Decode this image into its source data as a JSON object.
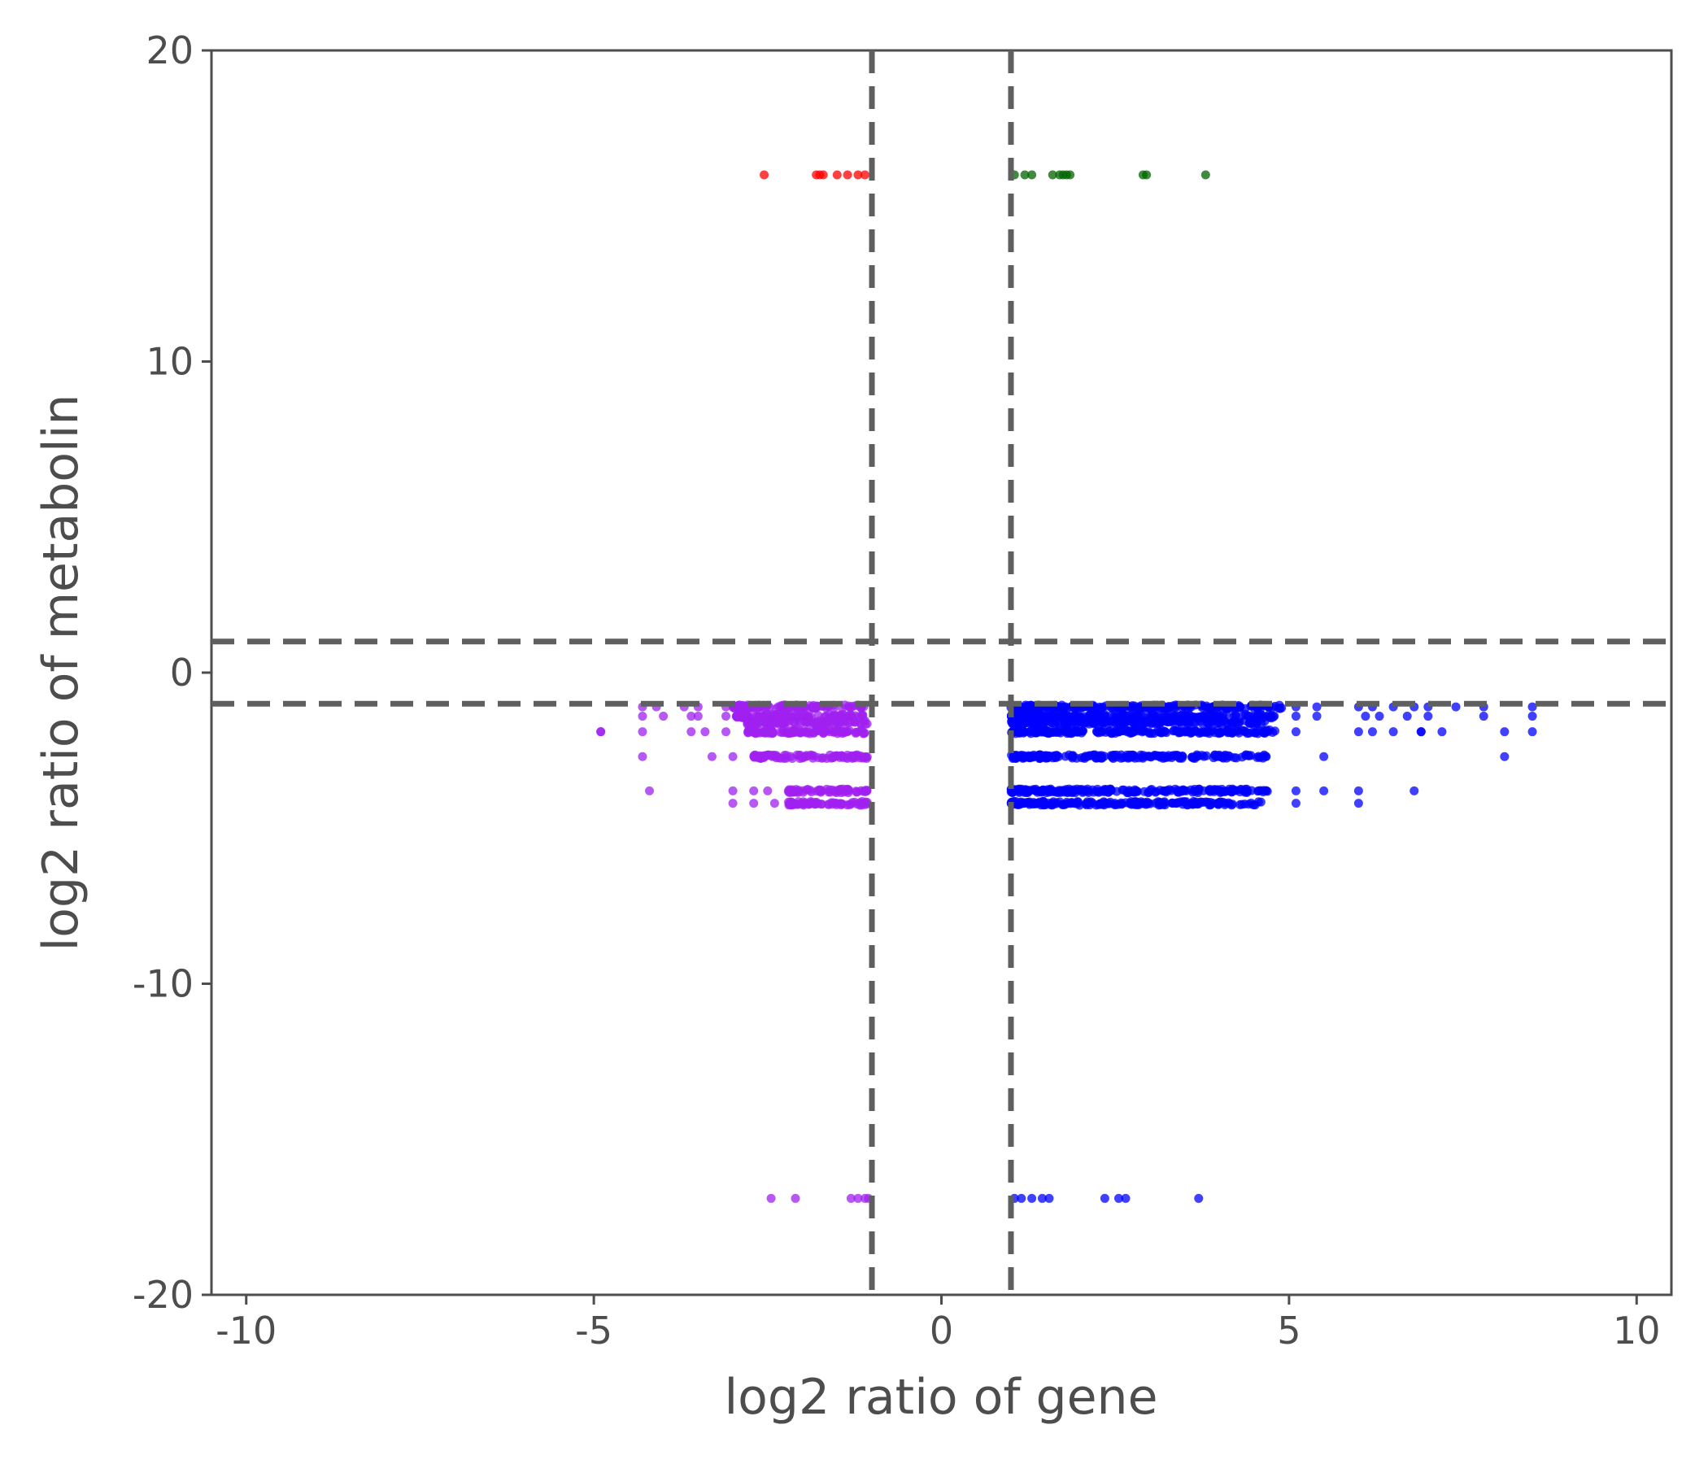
{
  "chart_data": {
    "type": "scatter",
    "title": "",
    "xlabel": "log2 ratio of gene",
    "ylabel": "log2 ratio of metabolin",
    "xlim": [
      -10.5,
      10.5
    ],
    "ylim": [
      -20,
      20
    ],
    "xticks": [
      -10,
      -5,
      0,
      5,
      10
    ],
    "xtick_labels": [
      "-10",
      "-5",
      "0",
      "5",
      "10"
    ],
    "yticks": [
      20,
      10,
      0,
      -10,
      -20
    ],
    "ytick_labels": [
      "20",
      "10",
      "0",
      "-10",
      "-20"
    ],
    "grid": false,
    "legend": "none",
    "threshold_lines": {
      "x": [
        -1,
        1
      ],
      "y": [
        1,
        -1
      ],
      "color": "#5f5f5f",
      "style": "dashed"
    },
    "series": [
      {
        "color": "#ff0000",
        "points": [
          [
            -2.55,
            16
          ],
          [
            -1.8,
            16
          ],
          [
            -1.75,
            16
          ],
          [
            -1.7,
            16
          ],
          [
            -1.5,
            16
          ],
          [
            -1.35,
            16
          ],
          [
            -1.2,
            16
          ],
          [
            -1.1,
            16
          ]
        ]
      },
      {
        "color": "#006400",
        "points": [
          [
            1.05,
            16
          ],
          [
            1.2,
            16
          ],
          [
            1.3,
            16
          ],
          [
            1.6,
            16
          ],
          [
            1.7,
            16
          ],
          [
            1.75,
            16
          ],
          [
            1.8,
            16
          ],
          [
            1.85,
            16
          ],
          [
            2.9,
            16
          ],
          [
            2.95,
            16
          ],
          [
            3.8,
            16
          ]
        ]
      },
      {
        "color": "#a020f0",
        "points": [
          [
            -4.9,
            -1.9
          ],
          [
            -4.3,
            -1.1
          ],
          [
            -4.3,
            -1.4
          ],
          [
            -4.3,
            -1.9
          ],
          [
            -4.3,
            -2.7
          ],
          [
            -4.2,
            -3.8
          ],
          [
            -4.1,
            -1.1
          ],
          [
            -4.0,
            -1.4
          ],
          [
            -3.7,
            -1.1
          ],
          [
            -3.6,
            -1.4
          ],
          [
            -3.6,
            -1.9
          ],
          [
            -3.5,
            -1.1
          ],
          [
            -3.5,
            -1.4
          ],
          [
            -3.4,
            -1.9
          ],
          [
            -3.3,
            -2.7
          ],
          [
            -3.1,
            -1.1
          ],
          [
            -3.1,
            -1.4
          ],
          [
            -3.1,
            -1.9
          ],
          [
            -3.0,
            -2.7
          ],
          [
            -3.0,
            -3.8
          ],
          [
            -3.0,
            -4.2
          ],
          [
            -2.9,
            -1.1
          ],
          [
            -2.7,
            -3.8
          ],
          [
            -2.7,
            -4.2
          ],
          [
            -2.6,
            -2.7
          ],
          [
            -2.5,
            -3.8
          ],
          [
            -2.4,
            -4.2
          ],
          [
            -2.2,
            -3.8
          ],
          [
            -2.0,
            -4.2
          ],
          [
            -4.9,
            -1.9
          ],
          [
            -2.45,
            -16.9
          ],
          [
            -2.1,
            -16.9
          ],
          [
            -1.3,
            -16.9
          ],
          [
            -1.2,
            -16.9
          ],
          [
            -1.1,
            -16.9
          ],
          [
            -1.05,
            -16.9
          ]
        ],
        "bands": [
          {
            "y": -1.1,
            "x_from": -3.0,
            "x_to": -1.05
          },
          {
            "y": -1.4,
            "x_from": -2.95,
            "x_to": -1.05
          },
          {
            "y": -1.6,
            "x_from": -2.8,
            "x_to": -1.05
          },
          {
            "y": -1.9,
            "x_from": -2.8,
            "x_to": -1.05
          },
          {
            "y": -2.7,
            "x_from": -2.7,
            "x_to": -1.05
          },
          {
            "y": -3.8,
            "x_from": -2.2,
            "x_to": -1.05
          },
          {
            "y": -4.2,
            "x_from": -2.2,
            "x_to": -1.05
          }
        ]
      },
      {
        "color": "#0000ff",
        "points": [
          [
            5.1,
            -1.1
          ],
          [
            5.1,
            -1.4
          ],
          [
            5.4,
            -1.1
          ],
          [
            5.4,
            -1.4
          ],
          [
            5.1,
            -1.9
          ],
          [
            5.5,
            -2.7
          ],
          [
            5.1,
            -3.8
          ],
          [
            5.1,
            -4.2
          ],
          [
            5.5,
            -3.8
          ],
          [
            6.0,
            -1.1
          ],
          [
            6.1,
            -1.4
          ],
          [
            6.2,
            -1.1
          ],
          [
            6.3,
            -1.4
          ],
          [
            6.0,
            -1.9
          ],
          [
            6.2,
            -1.9
          ],
          [
            6.5,
            -1.9
          ],
          [
            6.5,
            -1.1
          ],
          [
            6.7,
            -1.4
          ],
          [
            6.8,
            -1.1
          ],
          [
            6.9,
            -1.9
          ],
          [
            7.0,
            -1.1
          ],
          [
            7.0,
            -1.4
          ],
          [
            7.2,
            -1.9
          ],
          [
            7.4,
            -1.1
          ],
          [
            7.8,
            -1.1
          ],
          [
            7.8,
            -1.4
          ],
          [
            8.1,
            -1.9
          ],
          [
            8.1,
            -2.7
          ],
          [
            8.5,
            -1.1
          ],
          [
            8.5,
            -1.4
          ],
          [
            8.5,
            -1.9
          ],
          [
            6.0,
            -3.8
          ],
          [
            6.0,
            -4.2
          ],
          [
            6.8,
            -3.8
          ],
          [
            6.9,
            -1.9
          ],
          [
            1.05,
            -16.9
          ],
          [
            1.15,
            -16.9
          ],
          [
            1.3,
            -16.9
          ],
          [
            1.45,
            -16.9
          ],
          [
            1.55,
            -16.9
          ],
          [
            2.35,
            -16.9
          ],
          [
            2.55,
            -16.9
          ],
          [
            2.65,
            -16.9
          ],
          [
            3.7,
            -16.9
          ]
        ],
        "bands": [
          {
            "y": -1.1,
            "x_from": 1.0,
            "x_to": 4.9
          },
          {
            "y": -1.4,
            "x_from": 1.0,
            "x_to": 4.8
          },
          {
            "y": -1.6,
            "x_from": 1.0,
            "x_to": 4.7
          },
          {
            "y": -1.9,
            "x_from": 1.0,
            "x_to": 4.8
          },
          {
            "y": -2.7,
            "x_from": 1.0,
            "x_to": 4.7
          },
          {
            "y": -3.8,
            "x_from": 1.0,
            "x_to": 4.7
          },
          {
            "y": -4.2,
            "x_from": 1.0,
            "x_to": 4.6
          }
        ]
      }
    ]
  }
}
